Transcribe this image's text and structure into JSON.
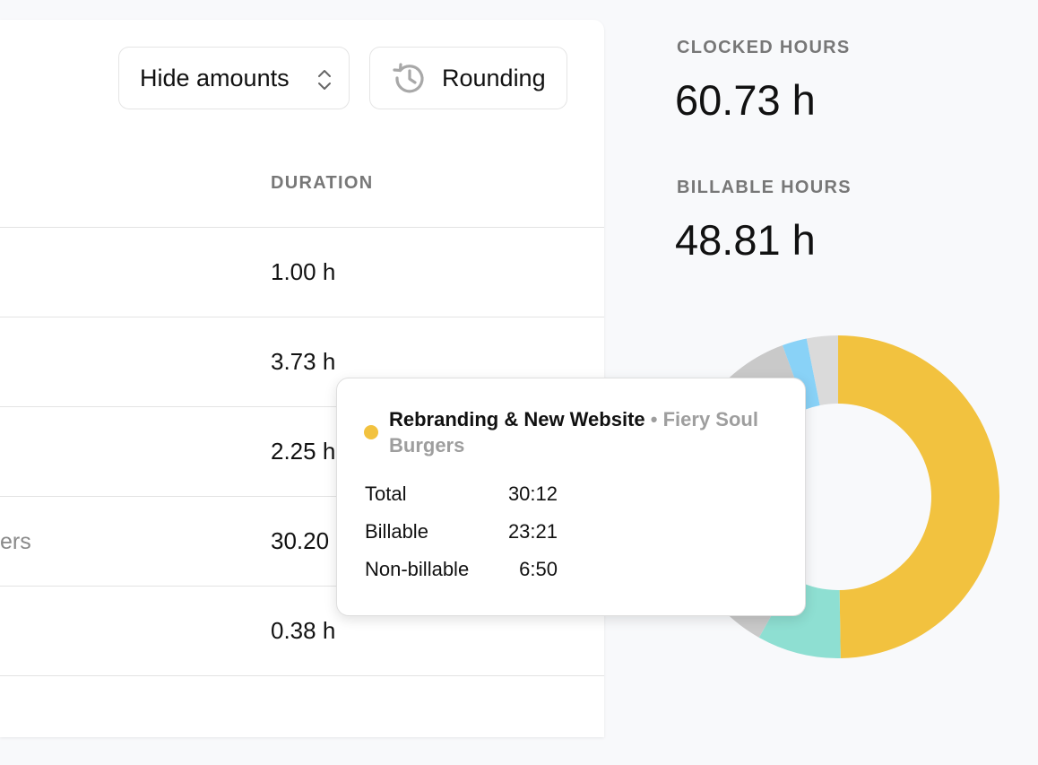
{
  "toolbar": {
    "amounts_select_label": "Hide amounts",
    "rounding_label": "Rounding"
  },
  "table": {
    "duration_header": "DURATION",
    "rows": [
      {
        "client_fragment": "",
        "duration": "1.00 h"
      },
      {
        "client_fragment": "",
        "duration": "3.73 h"
      },
      {
        "client_fragment": "",
        "duration": "2.25 h"
      },
      {
        "client_fragment": "ers",
        "duration": "30.20 h"
      },
      {
        "client_fragment": "",
        "duration": "0.38 h"
      }
    ]
  },
  "summary": {
    "clocked_label": "CLOCKED HOURS",
    "clocked_value": "60.73 h",
    "billable_label": "BILLABLE HOURS",
    "billable_value": "48.81 h"
  },
  "chart_data": {
    "type": "pie",
    "variant": "donut",
    "slices": [
      {
        "value": 30.2,
        "color": "#f2c23f"
      },
      {
        "value": 5.1,
        "color": "#8edfd2"
      },
      {
        "value": 22.0,
        "color": "#c9c9c9"
      },
      {
        "value": 1.5,
        "color": "#89d2f7"
      },
      {
        "value": 1.9,
        "color": "#dadada"
      }
    ]
  },
  "tooltip": {
    "dot_color": "#f2c23f",
    "project": "Rebranding & New Website",
    "separator": "•",
    "client": "Fiery Soul Burgers",
    "rows": [
      {
        "label": "Total",
        "value": "30:12"
      },
      {
        "label": "Billable",
        "value": "23:21"
      },
      {
        "label": "Non-billable",
        "value": "6:50"
      }
    ]
  }
}
